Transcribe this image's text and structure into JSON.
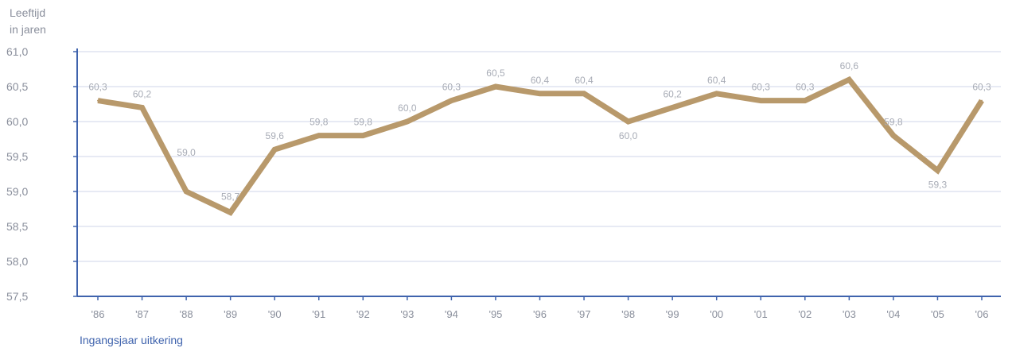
{
  "chart_data": {
    "type": "line",
    "ylabel_lines": [
      "Leeftijd",
      "in jaren"
    ],
    "xlabel": "Ingangsjaar uitkering",
    "yticks": [
      "61,0",
      "60,5",
      "60,0",
      "59,5",
      "59,0",
      "58,5",
      "58,0",
      "57,5"
    ],
    "ylim": [
      57.5,
      61.0
    ],
    "grid": true,
    "categories": [
      "'86",
      "'87",
      "'88",
      "'89",
      "'90",
      "'91",
      "'92",
      "'93",
      "'94",
      "'95",
      "'96",
      "'97",
      "'98",
      "'99",
      "'00",
      "'01",
      "'02",
      "'03",
      "'04",
      "'05",
      "'06"
    ],
    "values": [
      60.3,
      60.2,
      59.0,
      58.7,
      59.6,
      59.8,
      59.8,
      60.0,
      60.3,
      60.5,
      60.4,
      60.4,
      60.0,
      60.2,
      60.4,
      60.3,
      60.3,
      60.6,
      59.8,
      59.3,
      60.3
    ],
    "value_labels": [
      "60,3",
      "60,2",
      "59,0",
      "58,7",
      "59,6",
      "59,8",
      "59,8",
      "60,0",
      "60,3",
      "60,5",
      "60,4",
      "60,4",
      "60,0",
      "60,2",
      "60,4",
      "60,3",
      "60,3",
      "60,6",
      "59,8",
      "59,3",
      "60,3"
    ],
    "colors": {
      "line": "#b8996b",
      "axis": "#3f63ad",
      "grid": "#cfd6e8",
      "text": "#8a8f9c",
      "xlabel": "#3f63ad"
    }
  }
}
